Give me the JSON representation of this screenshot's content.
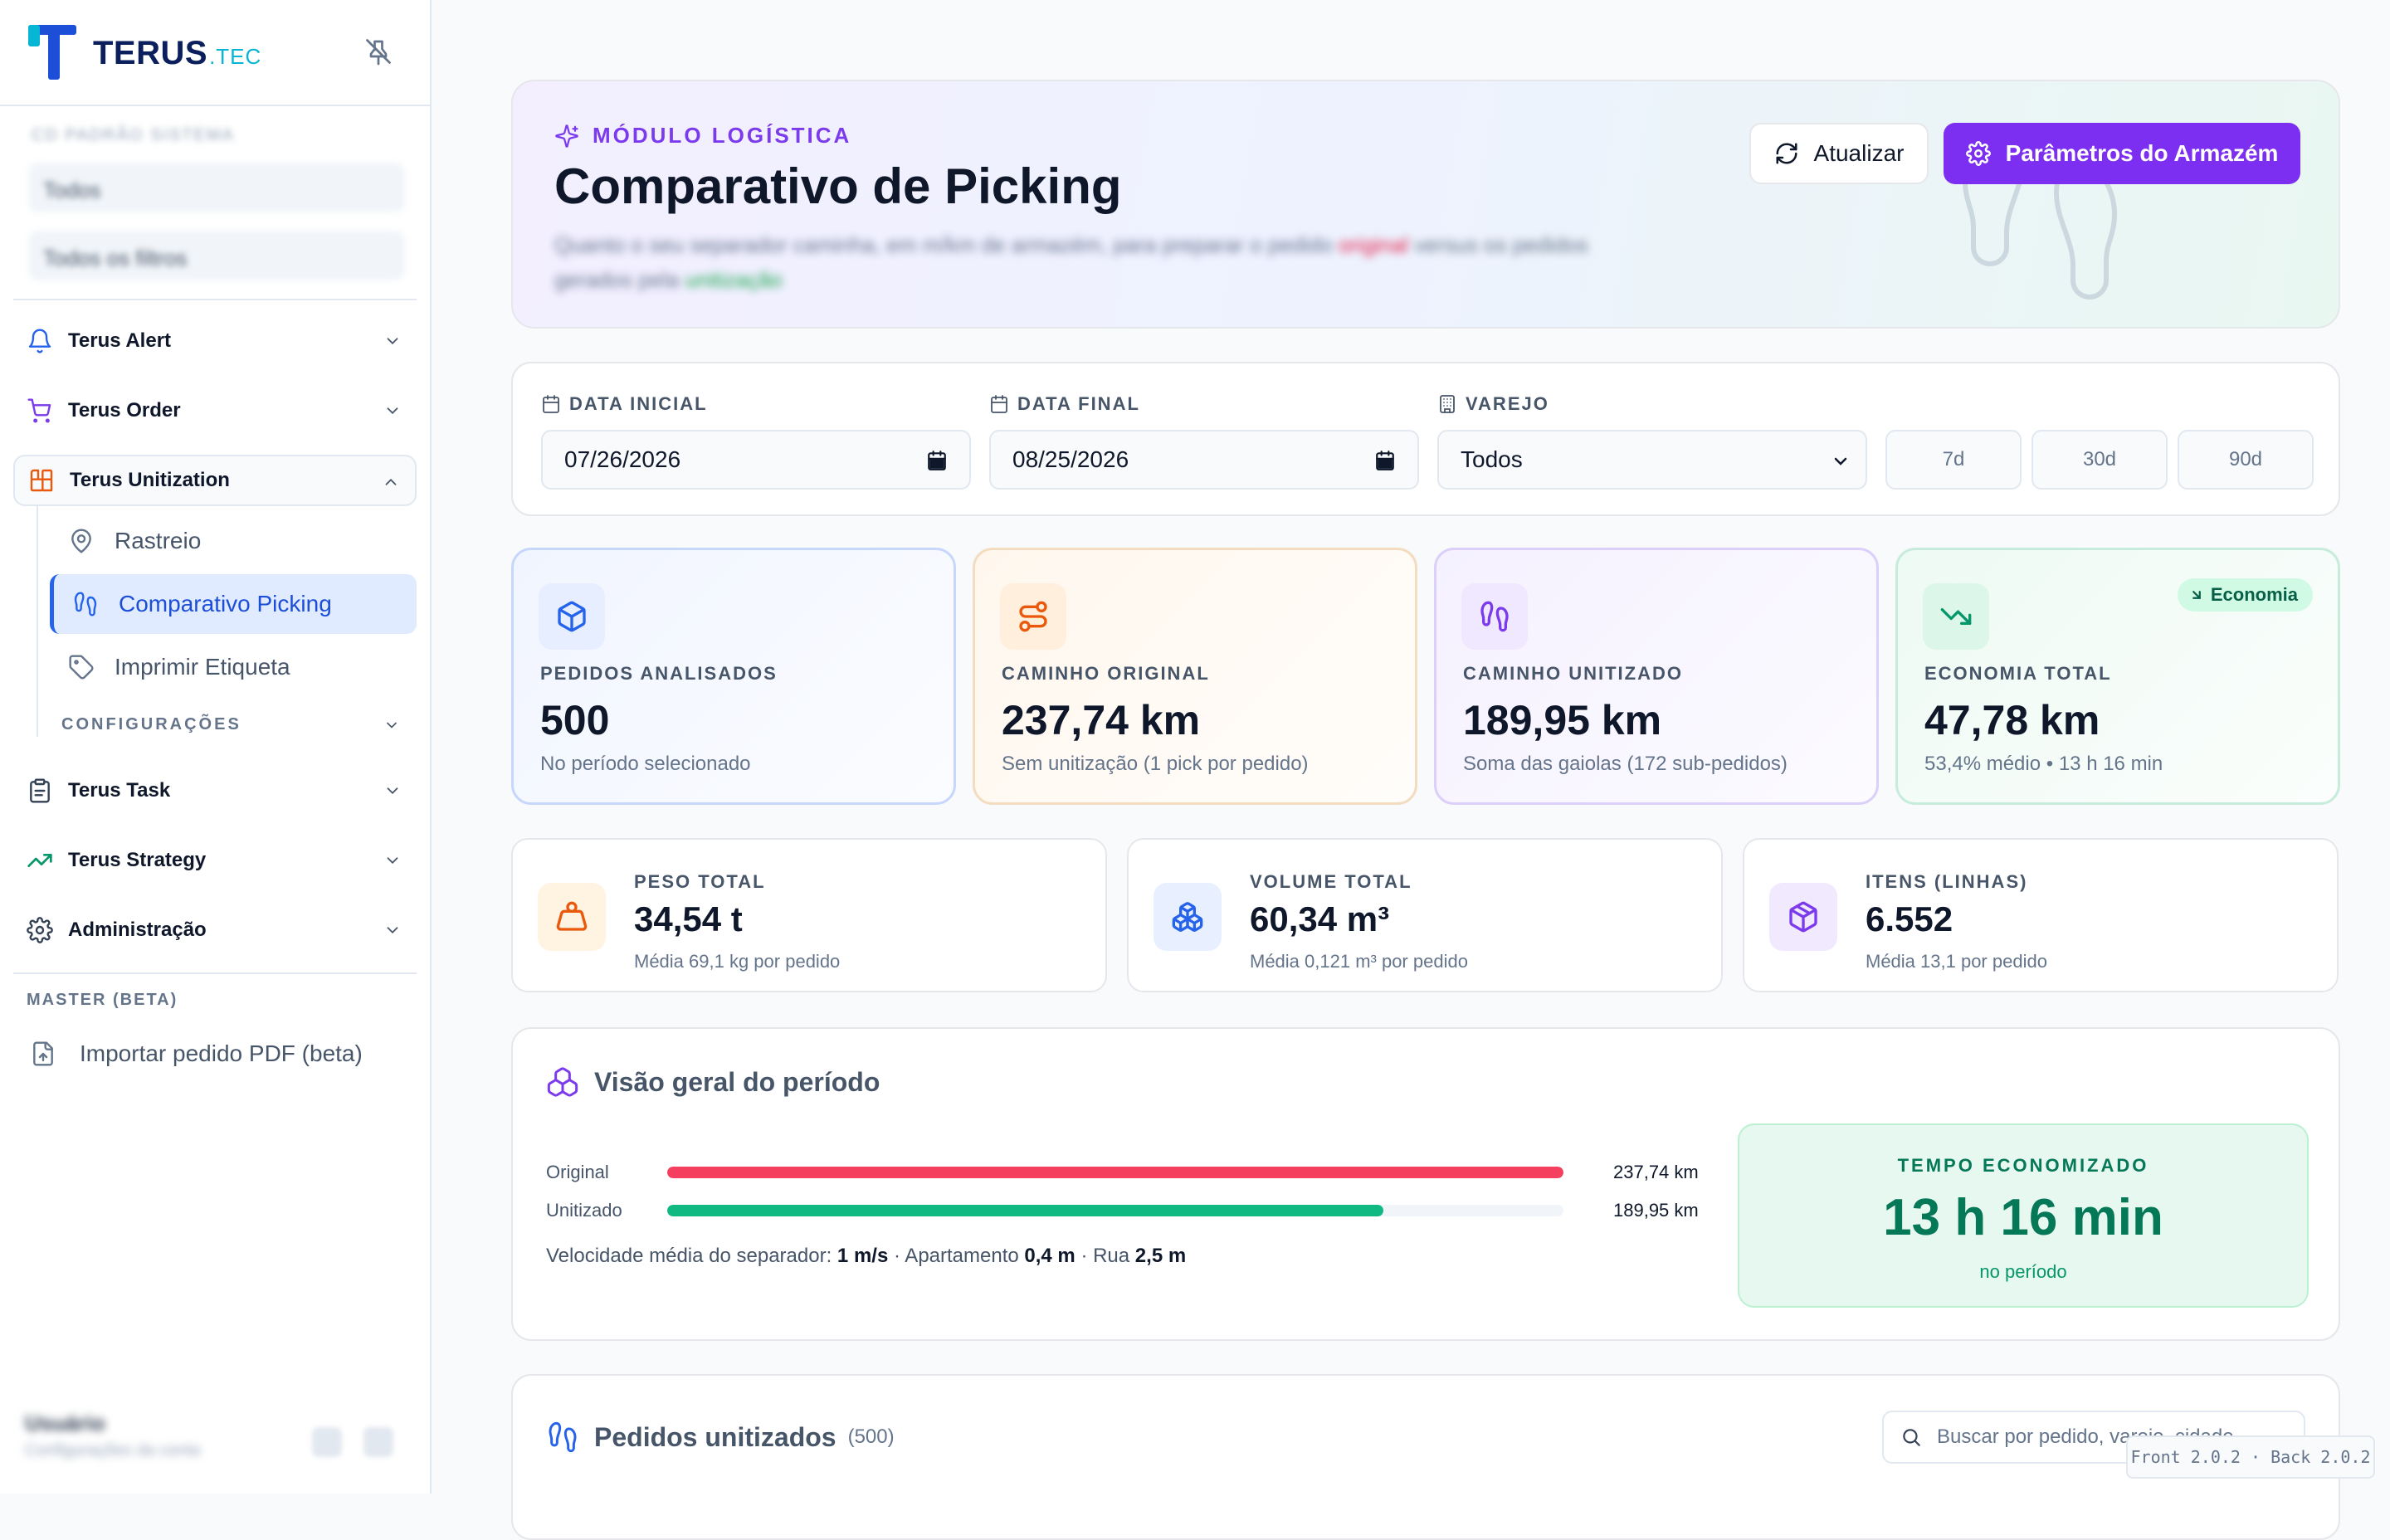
{
  "sidebar": {
    "logo": {
      "brand": "TERUS",
      "suffix": ".TEC"
    },
    "filters_caption": "CD PADRÃO SISTEMA",
    "filters": [
      "Todos",
      "Todos os filtros"
    ],
    "groups": [
      {
        "label": "Terus Alert",
        "icon": "bell-icon"
      },
      {
        "label": "Terus Order",
        "icon": "cart-icon"
      },
      {
        "label": "Terus Unitization",
        "icon": "blocks-icon"
      },
      {
        "label": "Terus Task",
        "icon": "clipboard-icon"
      },
      {
        "label": "Terus Strategy",
        "icon": "trend-icon"
      },
      {
        "label": "Administração",
        "icon": "gear-icon"
      }
    ],
    "unitization_items": [
      {
        "label": "Rastreio",
        "icon": "pin-icon"
      },
      {
        "label": "Comparativo Picking",
        "icon": "footprints-icon"
      },
      {
        "label": "Imprimir Etiqueta",
        "icon": "tag-icon"
      }
    ],
    "config_label": "CONFIGURAÇÕES",
    "master_label": "MASTER (BETA)",
    "import_label": "Importar pedido PDF (beta)",
    "user_name": "Usuário",
    "user_role": "Configurações da conta"
  },
  "hero": {
    "kicker": "MÓDULO LOGÍSTICA",
    "title": "Comparativo de Picking",
    "description_a": "Quanto o seu separador caminha, em m/km de armazém, para preparar o pedido",
    "description_red": "original",
    "description_b": "versus os pedidos gerados pela",
    "description_green": "unitização",
    "refresh_label": "Atualizar",
    "params_label": "Parâmetros do Armazém"
  },
  "filters": {
    "start_label": "DATA INICIAL",
    "start_value": "07/26/2026",
    "end_label": "DATA FINAL",
    "end_value": "08/25/2026",
    "retail_label": "VAREJO",
    "retail_value": "Todos",
    "ranges": [
      "7d",
      "30d",
      "90d"
    ]
  },
  "kpis": [
    {
      "label": "PEDIDOS ANALISADOS",
      "value": "500",
      "sub": "No período selecionado"
    },
    {
      "label": "CAMINHO ORIGINAL",
      "value": "237,74 km",
      "sub": "Sem unitização (1 pick por pedido)"
    },
    {
      "label": "CAMINHO UNITIZADO",
      "value": "189,95 km",
      "sub": "Soma das gaiolas (172 sub-pedidos)"
    },
    {
      "label": "ECONOMIA TOTAL",
      "value": "47,78 km",
      "sub": "53,4% médio • 13 h 16 min",
      "badge": "Economia"
    }
  ],
  "stats": [
    {
      "label": "PESO TOTAL",
      "value": "34,54 t",
      "sub": "Média 69,1 kg por pedido"
    },
    {
      "label": "VOLUME TOTAL",
      "value": "60,34 m³",
      "sub": "Média 0,121 m³ por pedido"
    },
    {
      "label": "ITENS (LINHAS)",
      "value": "6.552",
      "sub": "Média 13,1 por pedido"
    }
  ],
  "overview": {
    "title": "Visão geral do período",
    "bars": [
      {
        "label": "Original",
        "value_text": "237,74 km",
        "fraction": 1.0,
        "color": "#f43f5e"
      },
      {
        "label": "Unitizado",
        "value_text": "189,95 km",
        "fraction": 0.799,
        "color": "#10b981"
      }
    ],
    "speed_prefix": "Velocidade média do separador:",
    "speed_value": "1 m/s",
    "apt_prefix": "· Apartamento",
    "apt_value": "0,4 m",
    "street_prefix": "· Rua",
    "street_value": "2,5 m",
    "saved_label": "TEMPO ECONOMIZADO",
    "saved_value": "13 h 16 min",
    "saved_sub": "no período"
  },
  "orders": {
    "title": "Pedidos unitizados",
    "count": "(500)",
    "search_placeholder": "Buscar por pedido, varejo, cidade..."
  },
  "version": "Front 2.0.2 · Back 2.0.2"
}
